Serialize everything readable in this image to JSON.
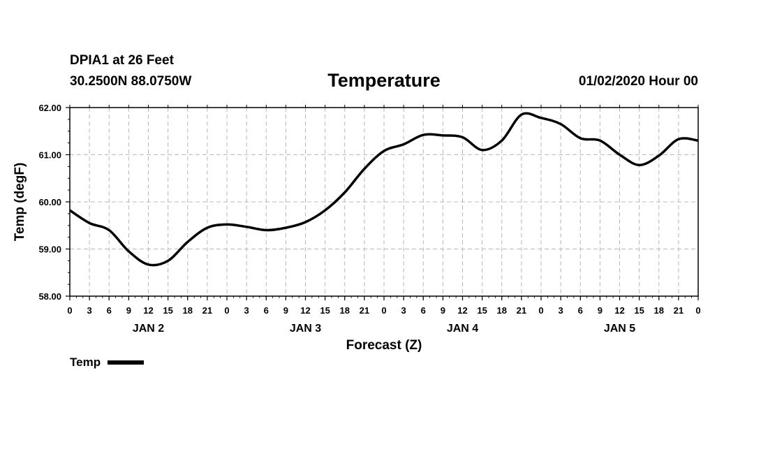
{
  "header": {
    "station": "DPIA1 at 26 Feet",
    "coords": "30.2500N 88.0750W",
    "title": "Temperature",
    "datetime": "01/02/2020 Hour 00"
  },
  "chart_data": {
    "type": "line",
    "title": "Temperature",
    "xlabel": "Forecast (Z)",
    "ylabel": "Temp (degF)",
    "ylim": [
      58,
      62
    ],
    "y_ticks": [
      "58.00",
      "59.00",
      "60.00",
      "61.00",
      "62.00"
    ],
    "x_range_hours": [
      0,
      96
    ],
    "x_tick_labels": [
      "0",
      "3",
      "6",
      "9",
      "12",
      "15",
      "18",
      "21",
      "0",
      "3",
      "6",
      "9",
      "12",
      "15",
      "18",
      "21",
      "0",
      "3",
      "6",
      "9",
      "12",
      "15",
      "18",
      "21",
      "0",
      "3",
      "6",
      "9",
      "12",
      "15",
      "18",
      "21",
      "0"
    ],
    "day_labels": [
      "JAN 2",
      "JAN 3",
      "JAN 4",
      "JAN 5"
    ],
    "grid": true,
    "legend_position": "bottom-left",
    "series": [
      {
        "name": "Temp",
        "color": "#000000",
        "x": [
          0,
          3,
          6,
          9,
          12,
          15,
          18,
          21,
          24,
          27,
          30,
          33,
          36,
          39,
          42,
          45,
          48,
          51,
          54,
          57,
          60,
          63,
          66,
          69,
          72,
          75,
          78,
          81,
          84,
          87,
          90,
          93,
          96
        ],
        "values": [
          59.82,
          59.55,
          59.4,
          58.95,
          58.67,
          58.75,
          59.15,
          59.45,
          59.52,
          59.47,
          59.4,
          59.45,
          59.57,
          59.82,
          60.2,
          60.7,
          61.08,
          61.22,
          61.42,
          61.41,
          61.37,
          61.1,
          61.3,
          61.85,
          61.78,
          61.65,
          61.35,
          61.3,
          61.0,
          60.78,
          60.98,
          61.33,
          61.3
        ]
      }
    ]
  },
  "legend": {
    "label": "Temp"
  }
}
